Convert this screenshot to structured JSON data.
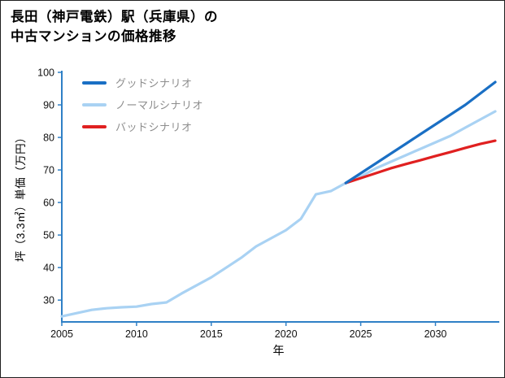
{
  "header": {
    "title_line1": "長田（神戸電鉄）駅（兵庫県）の",
    "title_line2": "中古マンションの価格推移"
  },
  "chart_data": {
    "type": "line",
    "title": "長田（神戸電鉄）駅（兵庫県）の中古マンションの価格推移",
    "xlabel": "年",
    "ylabel": "坪（3.3㎡）単価（万円）",
    "xlim": [
      2005,
      2034
    ],
    "ylim": [
      23.3,
      100
    ],
    "xticks": [
      2005,
      2010,
      2015,
      2020,
      2025,
      2030
    ],
    "yticks": [
      30,
      40,
      50,
      60,
      70,
      80,
      90,
      100
    ],
    "axis_color": "#2f80c6",
    "grid": false,
    "legend_position": "top-left",
    "series": [
      {
        "name": "グッドシナリオ",
        "color": "#1a6fc4",
        "x": [
          2024,
          2025,
          2026,
          2027,
          2028,
          2029,
          2030,
          2031,
          2032,
          2033,
          2034
        ],
        "values": [
          66,
          69,
          72,
          75,
          78,
          81,
          84,
          87,
          90,
          93.5,
          97
        ]
      },
      {
        "name": "ノーマルシナリオ",
        "color": "#a9d2f3",
        "x": [
          2005,
          2006,
          2007,
          2008,
          2009,
          2010,
          2011,
          2012,
          2013,
          2014,
          2015,
          2016,
          2017,
          2018,
          2019,
          2020,
          2021,
          2022,
          2023,
          2024,
          2025,
          2026,
          2027,
          2028,
          2029,
          2030,
          2031,
          2032,
          2033,
          2034
        ],
        "values": [
          25,
          26,
          27,
          27.5,
          27.8,
          28,
          28.8,
          29.3,
          32,
          34.5,
          37,
          40,
          43,
          46.5,
          49,
          51.5,
          55,
          62.5,
          63.5,
          66,
          68,
          70.5,
          72.5,
          74.5,
          76.5,
          78.5,
          80.5,
          83,
          85.5,
          88
        ]
      },
      {
        "name": "バッドシナリオ",
        "color": "#e02020",
        "x": [
          2024,
          2025,
          2026,
          2027,
          2028,
          2029,
          2030,
          2031,
          2032,
          2033,
          2034
        ],
        "values": [
          66,
          67.5,
          69,
          70.5,
          71.8,
          73,
          74.3,
          75.5,
          76.8,
          78,
          79
        ]
      }
    ]
  }
}
